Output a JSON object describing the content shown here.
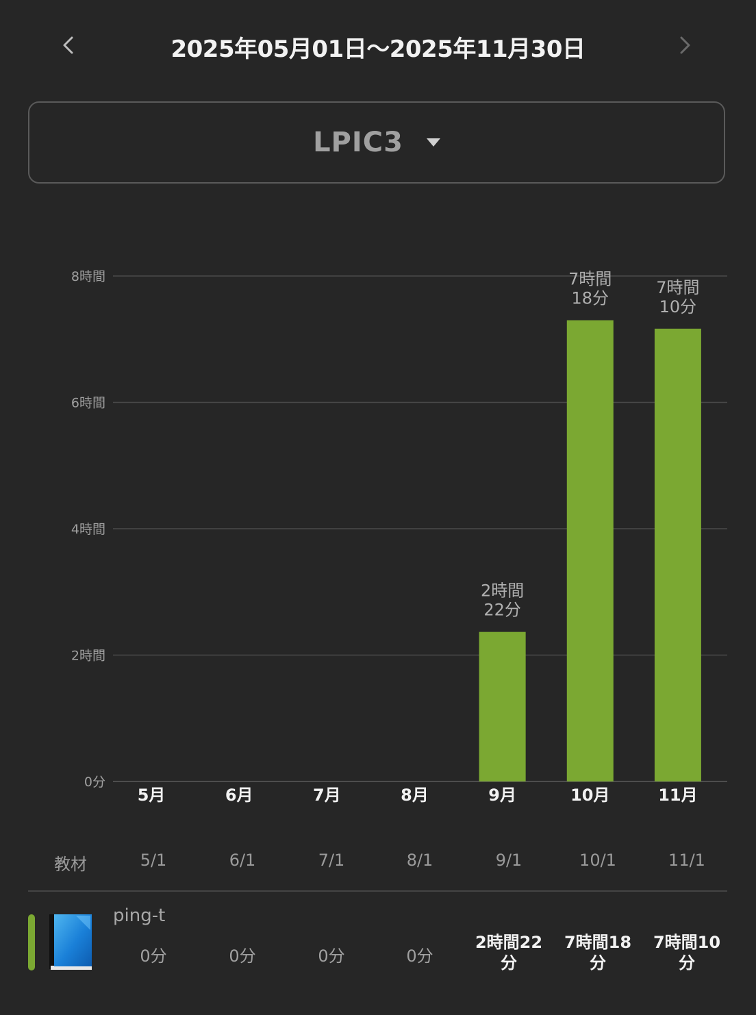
{
  "header": {
    "prev_icon": "chevron-left-icon",
    "next_icon": "chevron-right-icon",
    "range": "2025年05月01日〜2025年11月30日"
  },
  "selector": {
    "value": "LPIC3",
    "icon": "caret-down-icon"
  },
  "colors": {
    "background": "#262626",
    "bar": "#7ba832",
    "grid": "#4a4a4a"
  },
  "chart_data": {
    "type": "bar",
    "categories": [
      "5月",
      "6月",
      "7月",
      "8月",
      "9月",
      "10月",
      "11月"
    ],
    "values": [
      0,
      0,
      0,
      0,
      142,
      438,
      430
    ],
    "value_unit": "minutes",
    "data_labels": [
      null,
      null,
      null,
      null,
      [
        "2時間",
        "22分"
      ],
      [
        "7時間",
        "18分"
      ],
      [
        "7時間",
        "10分"
      ]
    ],
    "yticks": [
      {
        "value": 0,
        "label": "0分"
      },
      {
        "value": 120,
        "label": "2時間"
      },
      {
        "value": 240,
        "label": "4時間"
      },
      {
        "value": 360,
        "label": "6時間"
      },
      {
        "value": 480,
        "label": "8時間"
      }
    ],
    "ylim": [
      0,
      480
    ],
    "grid": true,
    "xlabel": "",
    "ylabel": ""
  },
  "table": {
    "header_label": "教材",
    "dates": [
      "5/1",
      "6/1",
      "7/1",
      "8/1",
      "9/1",
      "10/1",
      "11/1"
    ],
    "rows": [
      {
        "name": "ping-t",
        "icon": "book-icon",
        "cells": [
          "0分",
          "0分",
          "0分",
          "0分",
          [
            "2時間22",
            "分"
          ],
          [
            "7時間18",
            "分"
          ],
          [
            "7時間10",
            "分"
          ]
        ]
      }
    ]
  }
}
